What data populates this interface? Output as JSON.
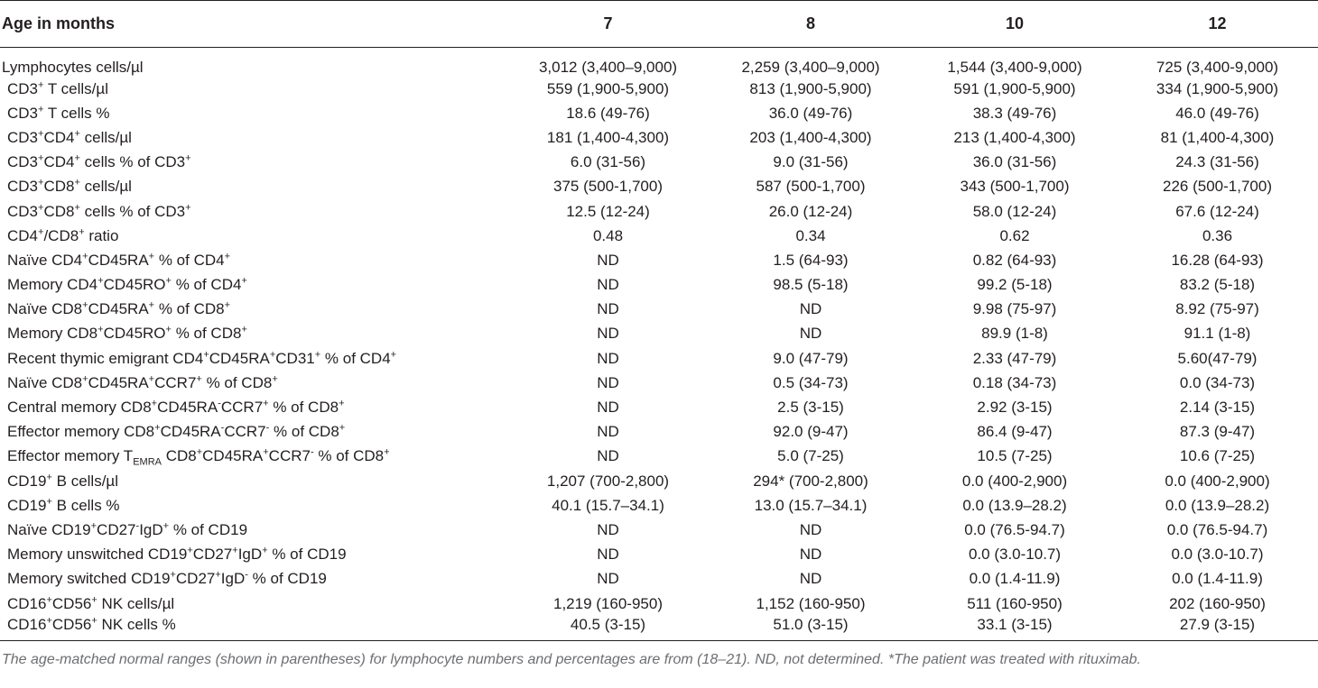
{
  "table": {
    "header": [
      "Age in months",
      "7",
      "8",
      "10",
      "12"
    ],
    "rows": [
      {
        "label": [
          [
            "",
            "Lymphocytes cells/µl"
          ]
        ],
        "values": [
          "3,012 (3,400–9,000)",
          "2,259 (3,400–9,000)",
          "1,544 (3,400-9,000)",
          "725 (3,400-9,000)"
        ]
      },
      {
        "label": [
          [
            "",
            "CD3"
          ],
          [
            "sup",
            "+"
          ],
          [
            "",
            " T cells/µl"
          ]
        ],
        "values": [
          "559 (1,900-5,900)",
          "813 (1,900-5,900)",
          "591 (1,900-5,900)",
          "334 (1,900-5,900)"
        ]
      },
      {
        "label": [
          [
            "",
            "CD3"
          ],
          [
            "sup",
            "+"
          ],
          [
            "",
            " T cells %"
          ]
        ],
        "values": [
          "18.6 (49-76)",
          "36.0 (49-76)",
          "38.3 (49-76)",
          "46.0 (49-76)"
        ]
      },
      {
        "label": [
          [
            "",
            "CD3"
          ],
          [
            "sup",
            "+"
          ],
          [
            "",
            "CD4"
          ],
          [
            "sup",
            "+"
          ],
          [
            "",
            " cells/µl"
          ]
        ],
        "values": [
          "181 (1,400-4,300)",
          "203 (1,400-4,300)",
          "213 (1,400-4,300)",
          "81 (1,400-4,300)"
        ]
      },
      {
        "label": [
          [
            "",
            "CD3"
          ],
          [
            "sup",
            "+"
          ],
          [
            "",
            "CD4"
          ],
          [
            "sup",
            "+"
          ],
          [
            "",
            " cells % of CD3"
          ],
          [
            "sup",
            "+"
          ]
        ],
        "values": [
          "6.0 (31-56)",
          "9.0 (31-56)",
          "36.0 (31-56)",
          "24.3 (31-56)"
        ]
      },
      {
        "label": [
          [
            "",
            "CD3"
          ],
          [
            "sup",
            "+"
          ],
          [
            "",
            "CD8"
          ],
          [
            "sup",
            "+"
          ],
          [
            "",
            " cells/µl"
          ]
        ],
        "values": [
          "375 (500-1,700)",
          "587 (500-1,700)",
          "343 (500-1,700)",
          "226 (500-1,700)"
        ]
      },
      {
        "label": [
          [
            "",
            "CD3"
          ],
          [
            "sup",
            "+"
          ],
          [
            "",
            "CD8"
          ],
          [
            "sup",
            "+"
          ],
          [
            "",
            " cells % of CD3"
          ],
          [
            "sup",
            "+"
          ]
        ],
        "values": [
          "12.5 (12-24)",
          "26.0 (12-24)",
          "58.0 (12-24)",
          "67.6 (12-24)"
        ]
      },
      {
        "label": [
          [
            "",
            "CD4"
          ],
          [
            "sup",
            "+"
          ],
          [
            "",
            "/CD8"
          ],
          [
            "sup",
            "+"
          ],
          [
            "",
            " ratio"
          ]
        ],
        "values": [
          "0.48",
          "0.34",
          "0.62",
          "0.36"
        ]
      },
      {
        "label": [
          [
            "",
            "Naïve CD4"
          ],
          [
            "sup",
            "+"
          ],
          [
            "",
            "CD45RA"
          ],
          [
            "sup",
            "+"
          ],
          [
            "",
            " % of CD4"
          ],
          [
            "sup",
            "+"
          ]
        ],
        "values": [
          "ND",
          "1.5 (64-93)",
          "0.82 (64-93)",
          "16.28 (64-93)"
        ]
      },
      {
        "label": [
          [
            "",
            "Memory CD4"
          ],
          [
            "sup",
            "+"
          ],
          [
            "",
            "CD45RO"
          ],
          [
            "sup",
            "+"
          ],
          [
            "",
            " % of CD4"
          ],
          [
            "sup",
            "+"
          ]
        ],
        "values": [
          "ND",
          "98.5 (5-18)",
          "99.2 (5-18)",
          "83.2 (5-18)"
        ]
      },
      {
        "label": [
          [
            "",
            "Naïve CD8"
          ],
          [
            "sup",
            "+"
          ],
          [
            "",
            "CD45RA"
          ],
          [
            "sup",
            "+"
          ],
          [
            "",
            " % of CD8"
          ],
          [
            "sup",
            "+"
          ]
        ],
        "values": [
          "ND",
          "ND",
          "9.98 (75-97)",
          "8.92 (75-97)"
        ]
      },
      {
        "label": [
          [
            "",
            "Memory CD8"
          ],
          [
            "sup",
            "+"
          ],
          [
            "",
            "CD45RO"
          ],
          [
            "sup",
            "+"
          ],
          [
            "",
            " % of CD8"
          ],
          [
            "sup",
            "+"
          ]
        ],
        "values": [
          "ND",
          "ND",
          "89.9 (1-8)",
          "91.1 (1-8)"
        ]
      },
      {
        "label": [
          [
            "",
            "Recent thymic emigrant CD4"
          ],
          [
            "sup",
            "+"
          ],
          [
            "",
            "CD45RA"
          ],
          [
            "sup",
            "+"
          ],
          [
            "",
            "CD31"
          ],
          [
            "sup",
            "+"
          ],
          [
            "",
            " % of CD4"
          ],
          [
            "sup",
            "+"
          ]
        ],
        "values": [
          "ND",
          "9.0 (47-79)",
          "2.33 (47-79)",
          "5.60(47-79)"
        ]
      },
      {
        "label": [
          [
            "",
            "Naïve CD8"
          ],
          [
            "sup",
            "+"
          ],
          [
            "",
            "CD45RA"
          ],
          [
            "sup",
            "+"
          ],
          [
            "",
            "CCR7"
          ],
          [
            "sup",
            "+"
          ],
          [
            "",
            " % of CD8"
          ],
          [
            "sup",
            "+"
          ]
        ],
        "values": [
          "ND",
          "0.5 (34-73)",
          "0.18 (34-73)",
          "0.0 (34-73)"
        ]
      },
      {
        "label": [
          [
            "",
            "Central memory CD8"
          ],
          [
            "sup",
            "+"
          ],
          [
            "",
            "CD45RA"
          ],
          [
            "sup",
            "-"
          ],
          [
            "",
            "CCR7"
          ],
          [
            "sup",
            "+"
          ],
          [
            "",
            " % of CD8"
          ],
          [
            "sup",
            "+"
          ]
        ],
        "values": [
          "ND",
          "2.5 (3-15)",
          "2.92 (3-15)",
          "2.14 (3-15)"
        ]
      },
      {
        "label": [
          [
            "",
            "Effector memory CD8"
          ],
          [
            "sup",
            "+"
          ],
          [
            "",
            "CD45RA"
          ],
          [
            "sup",
            "-"
          ],
          [
            "",
            "CCR7"
          ],
          [
            "sup",
            "-"
          ],
          [
            "",
            " % of CD8"
          ],
          [
            "sup",
            "+"
          ]
        ],
        "values": [
          "ND",
          "92.0 (9-47)",
          "86.4 (9-47)",
          "87.3 (9-47)"
        ]
      },
      {
        "label": [
          [
            "",
            "Effector memory T"
          ],
          [
            "sub",
            "EMRA"
          ],
          [
            "",
            " CD8"
          ],
          [
            "sup",
            "+"
          ],
          [
            "",
            "CD45RA"
          ],
          [
            "sup",
            "+"
          ],
          [
            "",
            "CCR7"
          ],
          [
            "sup",
            "-"
          ],
          [
            "",
            " % of CD8"
          ],
          [
            "sup",
            "+"
          ]
        ],
        "values": [
          "ND",
          "5.0 (7-25)",
          "10.5 (7-25)",
          "10.6 (7-25)"
        ]
      },
      {
        "label": [
          [
            "",
            "CD19"
          ],
          [
            "sup",
            "+"
          ],
          [
            "",
            " B cells/µl"
          ]
        ],
        "values": [
          "1,207 (700-2,800)",
          "294* (700-2,800)",
          "0.0 (400-2,900)",
          "0.0 (400-2,900)"
        ]
      },
      {
        "label": [
          [
            "",
            "CD19"
          ],
          [
            "sup",
            "+"
          ],
          [
            "",
            " B cells %"
          ]
        ],
        "values": [
          "40.1 (15.7–34.1)",
          "13.0 (15.7–34.1)",
          "0.0 (13.9–28.2)",
          "0.0 (13.9–28.2)"
        ]
      },
      {
        "label": [
          [
            "",
            "Naïve CD19"
          ],
          [
            "sup",
            "+"
          ],
          [
            "",
            "CD27"
          ],
          [
            "sup",
            "-"
          ],
          [
            "",
            "IgD"
          ],
          [
            "sup",
            "+"
          ],
          [
            "",
            " % of CD19"
          ]
        ],
        "values": [
          "ND",
          "ND",
          "0.0 (76.5-94.7)",
          "0.0 (76.5-94.7)"
        ]
      },
      {
        "label": [
          [
            "",
            "Memory unswitched CD19"
          ],
          [
            "sup",
            "+"
          ],
          [
            "",
            "CD27"
          ],
          [
            "sup",
            "+"
          ],
          [
            "",
            "IgD"
          ],
          [
            "sup",
            "+"
          ],
          [
            "",
            " % of CD19"
          ]
        ],
        "values": [
          "ND",
          "ND",
          "0.0 (3.0-10.7)",
          "0.0 (3.0-10.7)"
        ]
      },
      {
        "label": [
          [
            "",
            "Memory switched CD19"
          ],
          [
            "sup",
            "+"
          ],
          [
            "",
            "CD27"
          ],
          [
            "sup",
            "+"
          ],
          [
            "",
            "IgD"
          ],
          [
            "sup",
            "-"
          ],
          [
            "",
            " % of CD19"
          ]
        ],
        "values": [
          "ND",
          "ND",
          "0.0 (1.4-11.9)",
          "0.0 (1.4-11.9)"
        ]
      },
      {
        "label": [
          [
            "",
            "CD16"
          ],
          [
            "sup",
            "+"
          ],
          [
            "",
            "CD56"
          ],
          [
            "sup",
            "+"
          ],
          [
            "",
            " NK cells/µl"
          ]
        ],
        "values": [
          "1,219 (160-950)",
          "1,152 (160-950)",
          "511 (160-950)",
          "202 (160-950)"
        ]
      },
      {
        "label": [
          [
            "",
            "CD16"
          ],
          [
            "sup",
            "+"
          ],
          [
            "",
            "CD56"
          ],
          [
            "sup",
            "+"
          ],
          [
            "",
            " NK cells %"
          ]
        ],
        "values": [
          "40.5 (3-15)",
          "51.0 (3-15)",
          "33.1 (3-15)",
          "27.9 (3-15)"
        ]
      }
    ]
  },
  "footnote": "The age-matched normal ranges (shown in parentheses) for lymphocyte numbers and percentages are from (18–21). ND, not determined. *The patient was treated with rituximab."
}
